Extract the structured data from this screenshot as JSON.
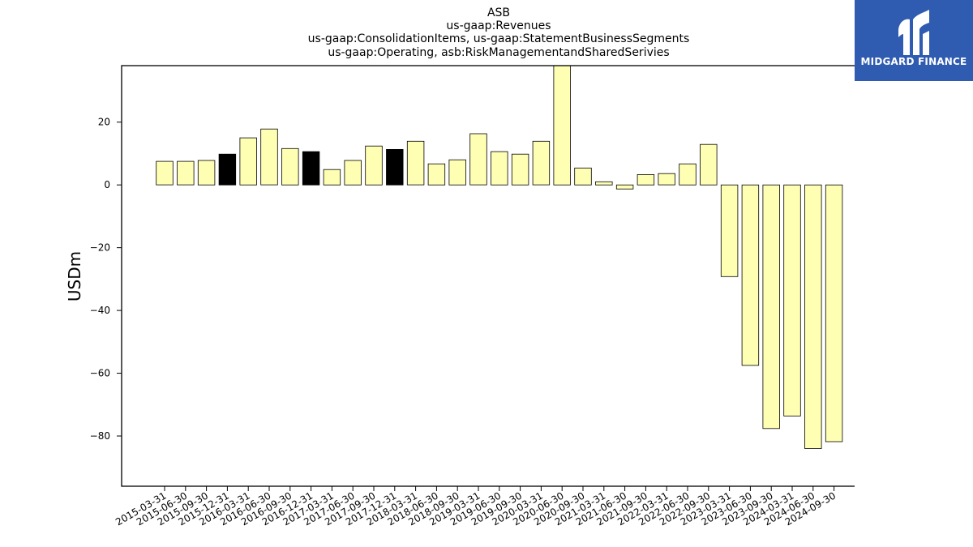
{
  "chart_data": {
    "type": "bar",
    "title_lines": [
      "ASB",
      "us-gaap:Revenues",
      "us-gaap:ConsolidationItems, us-gaap:StatementBusinessSegments",
      "us-gaap:Operating, asb:RiskManagementandSharedSerivies"
    ],
    "ylabel": "USDm",
    "xlabel": "",
    "ylim": [
      -96,
      38
    ],
    "yticks": [
      20,
      0,
      -20,
      -40,
      -60,
      -80
    ],
    "ytick_labels": [
      "20",
      "0",
      "−20",
      "−40",
      "−60",
      "−80"
    ],
    "grid": false,
    "categories": [
      "2015-03-31",
      "2015-06-30",
      "2015-09-30",
      "2015-12-31",
      "2016-03-31",
      "2016-06-30",
      "2016-09-30",
      "2016-12-31",
      "2017-03-31",
      "2017-06-30",
      "2017-09-30",
      "2017-12-31",
      "2018-03-31",
      "2018-06-30",
      "2018-09-30",
      "2019-03-31",
      "2019-06-30",
      "2019-09-30",
      "2020-03-31",
      "2020-06-30",
      "2020-09-30",
      "2021-03-31",
      "2021-06-30",
      "2021-09-30",
      "2022-03-31",
      "2022-06-30",
      "2022-09-30",
      "2023-03-31",
      "2023-06-30",
      "2023-09-30",
      "2024-03-31",
      "2024-06-30",
      "2024-09-30"
    ],
    "values": [
      7.5,
      7.5,
      7.8,
      9.8,
      15.0,
      17.8,
      11.6,
      10.6,
      4.9,
      7.8,
      12.4,
      11.3,
      13.9,
      6.7,
      8.0,
      16.3,
      10.6,
      9.8,
      13.9,
      38.0,
      5.4,
      1.0,
      -1.3,
      3.3,
      3.6,
      6.7,
      12.9,
      -29.2,
      -57.5,
      -77.6,
      -73.6,
      -84.0,
      -81.8
    ],
    "bar_colors": [
      "#ffffb3",
      "#ffffb3",
      "#ffffb3",
      "#000000",
      "#ffffb3",
      "#ffffb3",
      "#ffffb3",
      "#000000",
      "#ffffb3",
      "#ffffb3",
      "#ffffb3",
      "#000000",
      "#ffffb3",
      "#ffffb3",
      "#ffffb3",
      "#ffffb3",
      "#ffffb3",
      "#ffffb3",
      "#ffffb3",
      "#ffffb3",
      "#ffffb3",
      "#ffffb3",
      "#ffffb3",
      "#ffffb3",
      "#ffffb3",
      "#ffffb3",
      "#ffffb3",
      "#ffffb3",
      "#ffffb3",
      "#ffffb3",
      "#ffffb3",
      "#ffffb3",
      "#ffffb3"
    ]
  },
  "logo": {
    "text": "MIDGARD FINANCE",
    "background": "#2f5bb0"
  }
}
